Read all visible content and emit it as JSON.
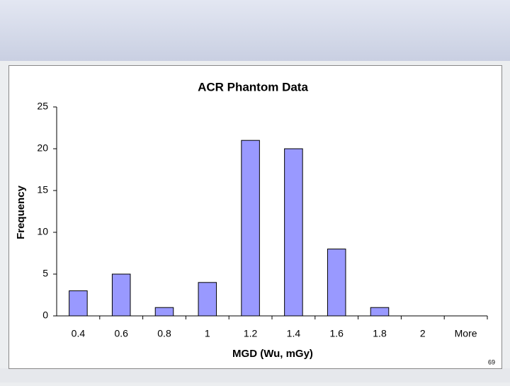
{
  "slide_number": "69",
  "chart_data": {
    "type": "bar",
    "title": "ACR Phantom Data",
    "x_label": "MGD (Wu, mGy)",
    "y_label": "Frequency",
    "categories": [
      "0.4",
      "0.6",
      "0.8",
      "1",
      "1.2",
      "1.4",
      "1.6",
      "1.8",
      "2",
      "More"
    ],
    "values": [
      3,
      5,
      1,
      4,
      21,
      20,
      8,
      1,
      0,
      0
    ],
    "color": "#9999ff",
    "ylim": [
      0,
      25
    ],
    "yticks": [
      0,
      5,
      10,
      15,
      20,
      25
    ],
    "grid": false
  }
}
